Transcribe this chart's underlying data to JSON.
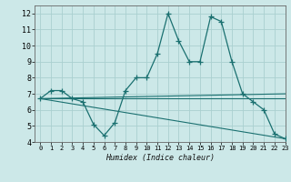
{
  "xlabel": "Humidex (Indice chaleur)",
  "xlim": [
    -0.5,
    23
  ],
  "ylim": [
    4,
    12.5
  ],
  "yticks": [
    4,
    5,
    6,
    7,
    8,
    9,
    10,
    11,
    12
  ],
  "xticks": [
    0,
    1,
    2,
    3,
    4,
    5,
    6,
    7,
    8,
    9,
    10,
    11,
    12,
    13,
    14,
    15,
    16,
    17,
    18,
    19,
    20,
    21,
    22,
    23
  ],
  "background_color": "#cce8e8",
  "grid_color": "#aad0d0",
  "line_color": "#1a7070",
  "lines": [
    {
      "x": [
        0,
        1,
        2,
        3,
        4,
        5,
        6,
        7,
        8,
        9,
        10,
        11,
        12,
        13,
        14,
        15,
        16,
        17,
        18,
        19,
        20,
        21,
        22,
        23
      ],
      "y": [
        6.7,
        7.2,
        7.2,
        6.7,
        6.5,
        5.1,
        4.4,
        5.2,
        7.2,
        8.0,
        8.0,
        9.5,
        12.0,
        10.3,
        9.0,
        9.0,
        11.8,
        11.5,
        9.0,
        7.0,
        6.5,
        6.0,
        4.5,
        4.2
      ],
      "marker": "+"
    },
    {
      "x": [
        0,
        23
      ],
      "y": [
        6.7,
        7.0
      ],
      "marker": null
    },
    {
      "x": [
        0,
        23
      ],
      "y": [
        6.7,
        6.7
      ],
      "marker": null
    },
    {
      "x": [
        0,
        23
      ],
      "y": [
        6.7,
        4.2
      ],
      "marker": null
    }
  ]
}
